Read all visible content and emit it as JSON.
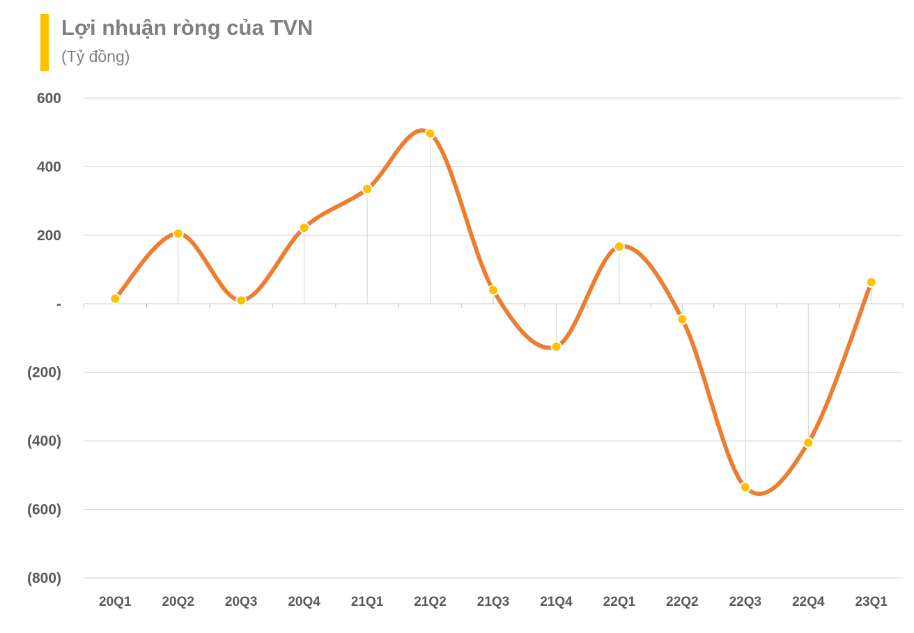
{
  "header": {
    "title": "Lợi nhuận ròng của TVN",
    "subtitle": "(Tỷ đồng)"
  },
  "colors": {
    "accent_bar": "#ffc000",
    "line": "#ed7d31",
    "marker": "#ffc000",
    "grid": "#d9d9d9"
  },
  "chart_data": {
    "type": "line",
    "title": "Lợi nhuận ròng của TVN",
    "subtitle": "(Tỷ đồng)",
    "categories": [
      "20Q1",
      "20Q2",
      "20Q3",
      "20Q4",
      "21Q1",
      "21Q2",
      "21Q3",
      "21Q4",
      "22Q1",
      "22Q2",
      "22Q3",
      "22Q4",
      "23Q1"
    ],
    "series": [
      {
        "values": [
          15,
          205,
          10,
          222,
          335,
          497,
          40,
          -125,
          167,
          -45,
          -535,
          -405,
          63
        ]
      }
    ],
    "ylim": [
      -800,
      600
    ],
    "yticks": [
      600,
      400,
      200,
      0,
      -200,
      -400,
      -600,
      -800
    ],
    "ytick_labels": [
      "600",
      "400",
      "200",
      "-",
      "(200)",
      "(400)",
      "(600)",
      "(800)"
    ],
    "smooth": true,
    "grid": true,
    "legend": "none"
  }
}
